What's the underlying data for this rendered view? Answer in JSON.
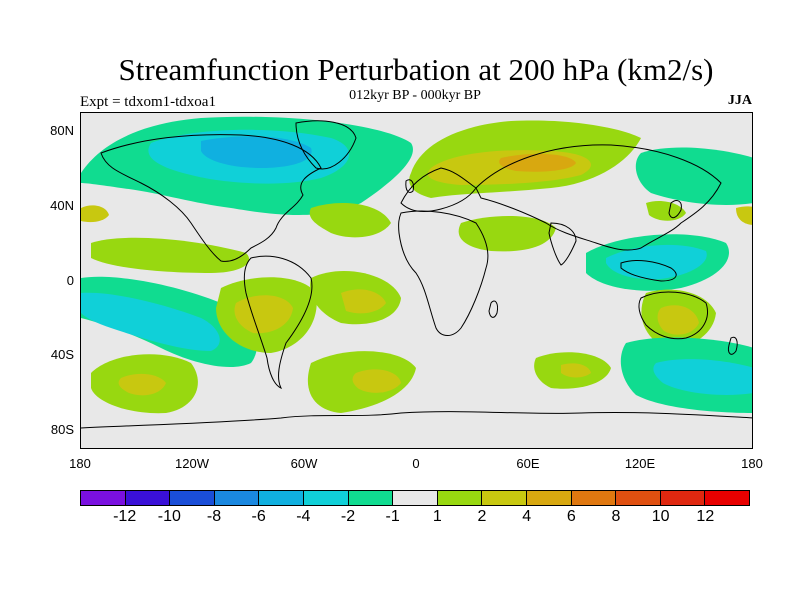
{
  "title": "Streamfunction Perturbation at 200 hPa (km2/s)",
  "subtitle": "012kyr BP - 000kyr BP",
  "expt_label": "Expt = tdxom1-tdxoa1",
  "season": "JJA",
  "lat_labels": [
    "80N",
    "40N",
    "0",
    "40S",
    "80S"
  ],
  "lon_labels": [
    "180",
    "120W",
    "60W",
    "0",
    "60E",
    "120E",
    "180"
  ],
  "colorbar": {
    "labels": [
      "-12",
      "-10",
      "-8",
      "-6",
      "-4",
      "-2",
      "-1",
      "1",
      "2",
      "4",
      "6",
      "8",
      "10",
      "12"
    ],
    "colors": [
      "#7a10e0",
      "#3a10d8",
      "#1a4ed8",
      "#1a88e0",
      "#10b0e0",
      "#10d0d8",
      "#10dc90",
      "#e8e8e8",
      "#98d810",
      "#c8c810",
      "#d8a810",
      "#e07810",
      "#e05010",
      "#e02810",
      "#e80000"
    ]
  },
  "palette": {
    "background": "#e8e8e8",
    "pos_light": "#98d810",
    "pos_mid": "#c8c810",
    "pos_strong": "#d8a810",
    "neg_light": "#10dc90",
    "neg_mid": "#10d0d8",
    "neg_strong": "#10b0e0"
  }
}
